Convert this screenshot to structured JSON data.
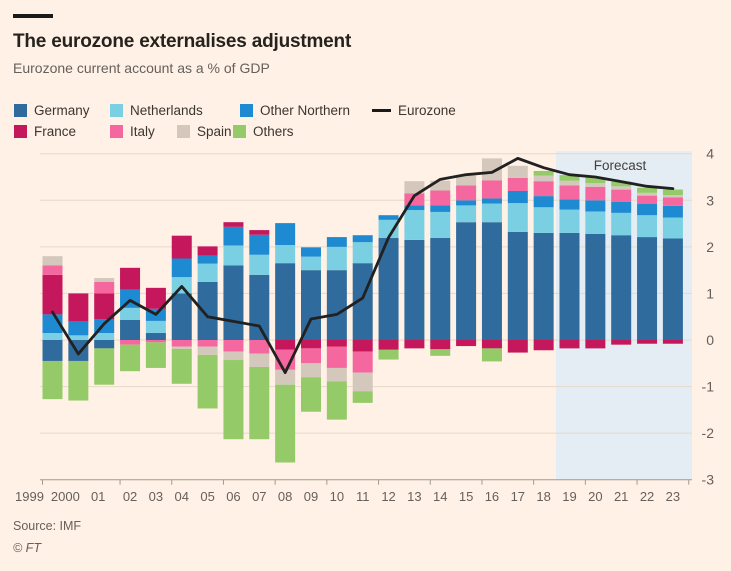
{
  "header": {
    "title": "The eurozone externalises adjustment",
    "subtitle": "Eurozone current account as a % of GDP"
  },
  "footer": {
    "source": "Source: IMF",
    "credit": "© FT"
  },
  "colors": {
    "background": "#FFF1E5",
    "grid": "#e7d8c9",
    "axis": "#a39a8f",
    "axis_text": "#66605c",
    "forecast_band": "#E4EDF4",
    "forecast_text": "#43403b",
    "eurozone_line": "#212121"
  },
  "legend": {
    "row1": [
      "Germany",
      "Netherlands",
      "Other Northern",
      "Eurozone"
    ],
    "row2": [
      "France",
      "Italy",
      "Spain",
      "Others"
    ]
  },
  "chart_data": {
    "type": "bar",
    "subtype": "stacked-bar-with-line",
    "title": "The eurozone externalises adjustment",
    "ylabel": "",
    "xlabel": "",
    "ylim": [
      -3,
      4
    ],
    "yticks": [
      4,
      3,
      2,
      1,
      0,
      -1,
      -2,
      -3
    ],
    "grid": true,
    "legend_position": "top",
    "categories": [
      "1999",
      "2000",
      "01",
      "02",
      "03",
      "04",
      "05",
      "06",
      "07",
      "08",
      "09",
      "10",
      "11",
      "12",
      "13",
      "14",
      "15",
      "16",
      "17",
      "18",
      "19",
      "20",
      "21",
      "22",
      "23"
    ],
    "series": [
      {
        "name": "Germany",
        "color": "#2f6b9d",
        "values": [
          -0.45,
          -0.45,
          -0.18,
          0.43,
          0.15,
          1.0,
          1.25,
          1.6,
          1.4,
          1.65,
          1.5,
          1.5,
          1.65,
          2.19,
          2.15,
          2.19,
          2.53,
          2.53,
          2.32,
          2.3,
          2.3,
          2.28,
          2.25,
          2.21,
          2.18
        ]
      },
      {
        "name": "Netherlands",
        "color": "#7ad0e2",
        "values": [
          0.15,
          0.1,
          0.15,
          0.26,
          0.26,
          0.35,
          0.39,
          0.43,
          0.43,
          0.39,
          0.29,
          0.5,
          0.45,
          0.39,
          0.64,
          0.56,
          0.36,
          0.4,
          0.62,
          0.55,
          0.5,
          0.48,
          0.48,
          0.47,
          0.45
        ]
      },
      {
        "name": "Other Northern",
        "color": "#1e8ad1",
        "values": [
          0.4,
          0.3,
          0.3,
          0.39,
          0.26,
          0.4,
          0.17,
          0.4,
          0.43,
          0.47,
          0.2,
          0.21,
          0.15,
          0.1,
          0.1,
          0.14,
          0.11,
          0.11,
          0.26,
          0.24,
          0.22,
          0.24,
          0.24,
          0.24,
          0.25
        ]
      },
      {
        "name": "France",
        "color": "#c4175c",
        "values": [
          0.85,
          0.6,
          0.55,
          0.47,
          0.45,
          0.49,
          0.2,
          0.1,
          0.1,
          -0.21,
          -0.18,
          -0.14,
          -0.25,
          -0.21,
          -0.18,
          -0.2,
          -0.13,
          -0.18,
          -0.27,
          -0.22,
          -0.18,
          -0.18,
          -0.1,
          -0.08,
          -0.08
        ]
      },
      {
        "name": "Italy",
        "color": "#f4679f",
        "values": [
          0.2,
          0.0,
          0.25,
          -0.1,
          -0.05,
          -0.14,
          -0.14,
          -0.25,
          -0.29,
          -0.43,
          -0.32,
          -0.46,
          -0.45,
          0.0,
          0.26,
          0.32,
          0.32,
          0.39,
          0.28,
          0.32,
          0.3,
          0.29,
          0.26,
          0.18,
          0.18
        ]
      },
      {
        "name": "Spain",
        "color": "#d3c8bb",
        "values": [
          0.2,
          0.0,
          0.08,
          0.0,
          0.0,
          -0.05,
          -0.18,
          -0.18,
          -0.29,
          -0.32,
          -0.3,
          -0.29,
          -0.4,
          0.0,
          0.26,
          0.21,
          0.21,
          0.47,
          0.26,
          0.12,
          0.1,
          0.08,
          0.07,
          0.06,
          0.05
        ]
      },
      {
        "name": "Others",
        "color": "#95ca68",
        "values": [
          -0.82,
          -0.85,
          -0.78,
          -0.57,
          -0.55,
          -0.75,
          -1.15,
          -1.7,
          -1.55,
          -1.67,
          -0.74,
          -0.82,
          -0.25,
          -0.21,
          0.0,
          -0.14,
          0.0,
          -0.28,
          0.0,
          0.1,
          0.12,
          0.12,
          0.1,
          0.11,
          0.12
        ]
      }
    ],
    "line_series": {
      "name": "Eurozone",
      "color": "#212121",
      "values": [
        0.6,
        -0.3,
        0.35,
        0.85,
        0.55,
        1.15,
        0.5,
        0.4,
        0.3,
        -0.7,
        0.45,
        0.55,
        0.9,
        2.2,
        3.1,
        3.45,
        3.55,
        3.6,
        3.9,
        3.7,
        3.55,
        3.5,
        3.4,
        3.3,
        3.25
      ]
    },
    "forecast": {
      "label": "Forecast",
      "start_category": "19",
      "start_index": 20
    }
  }
}
